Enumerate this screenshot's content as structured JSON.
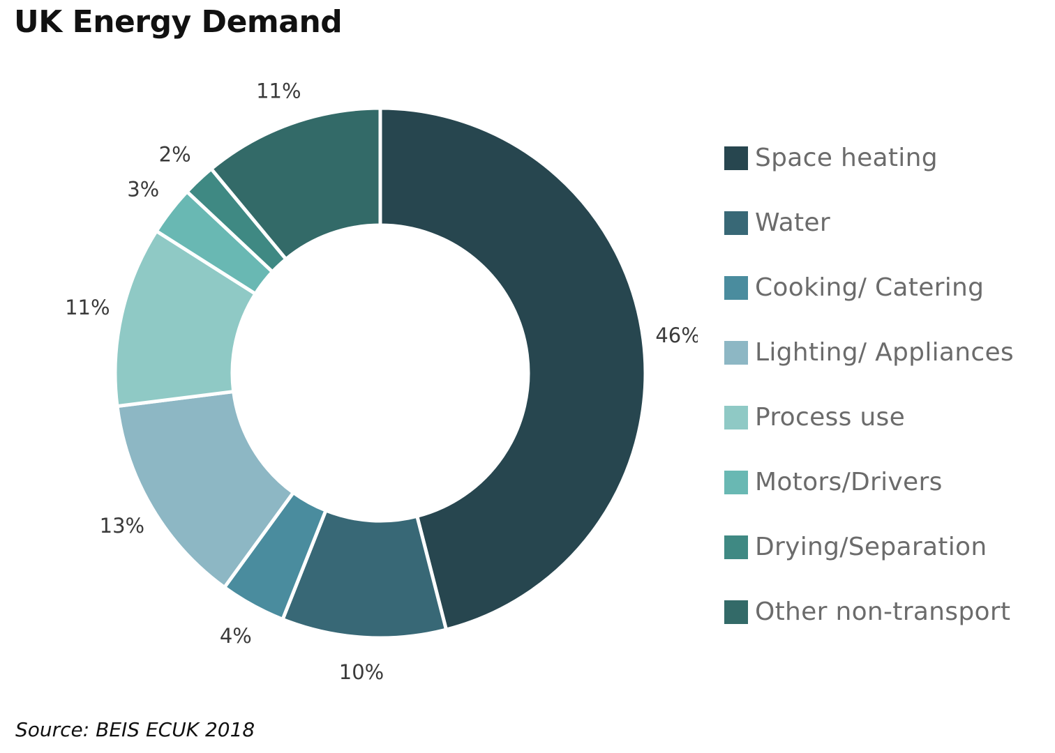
{
  "chart_data": {
    "type": "pie",
    "title": "UK Energy Demand",
    "source": "Source: BEIS ECUK 2018",
    "legend_position": "right",
    "slices": [
      {
        "name": "Space heating",
        "value": 46,
        "label": "46%",
        "color": "#27464f"
      },
      {
        "name": "Water",
        "value": 10,
        "label": "10%",
        "color": "#386876"
      },
      {
        "name": "Cooking/ Catering",
        "value": 4,
        "label": "4%",
        "color": "#4a8c9e"
      },
      {
        "name": "Lighting/ Appliances",
        "value": 13,
        "label": "13%",
        "color": "#8db7c4"
      },
      {
        "name": "Process use",
        "value": 11,
        "label": "11%",
        "color": "#8fc9c5"
      },
      {
        "name": "Motors/Drivers",
        "value": 3,
        "label": "3%",
        "color": "#69b8b3"
      },
      {
        "name": "Drying/Separation",
        "value": 2,
        "label": "2%",
        "color": "#3f8983"
      },
      {
        "name": "Other non-transport",
        "value": 11,
        "label": "11%",
        "color": "#336a68"
      }
    ]
  }
}
